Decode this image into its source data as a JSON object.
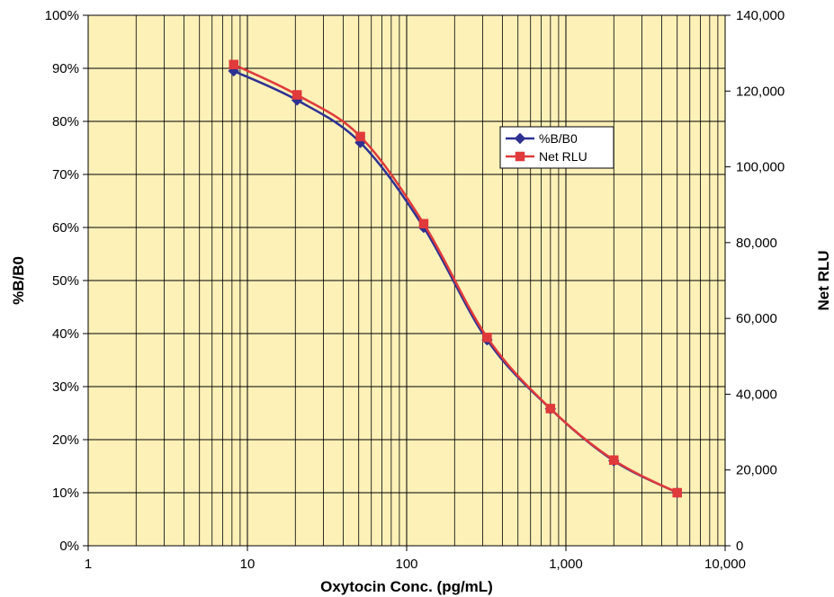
{
  "chart_data": {
    "type": "line",
    "xscale": "log",
    "xlabel": "Oxytocin Conc. (pg/mL)",
    "ylabel": "%B/B0",
    "y2label": "Net RLU",
    "xlim": [
      1,
      10000
    ],
    "ylim": [
      0,
      100
    ],
    "y2lim": [
      0,
      140000
    ],
    "x_tick_labels": [
      "1",
      "10",
      "100",
      "1,000",
      "10,000"
    ],
    "x_tick_values": [
      1,
      10,
      100,
      1000,
      10000
    ],
    "y_tick_labels": [
      "0%",
      "10%",
      "20%",
      "30%",
      "40%",
      "50%",
      "60%",
      "70%",
      "80%",
      "90%",
      "100%"
    ],
    "y_tick_values": [
      0,
      10,
      20,
      30,
      40,
      50,
      60,
      70,
      80,
      90,
      100
    ],
    "y2_tick_labels": [
      "0",
      "20,000",
      "40,000",
      "60,000",
      "80,000",
      "100,000",
      "120,000",
      "140,000"
    ],
    "y2_tick_values": [
      0,
      20000,
      40000,
      60000,
      80000,
      100000,
      120000,
      140000
    ],
    "grid": true,
    "legend": "upper-right-center",
    "x": [
      8.2,
      20.5,
      51.2,
      128,
      320,
      800,
      2000,
      5000
    ],
    "series": [
      {
        "name": "%B/B0",
        "axis": "left",
        "color": "#2e3192",
        "marker": "diamond",
        "values": [
          89.5,
          84.0,
          76.0,
          60.0,
          38.8,
          25.8,
          16.0,
          10.0
        ]
      },
      {
        "name": "Net RLU",
        "axis": "right",
        "color": "#e03a3a",
        "marker": "square",
        "values": [
          127000,
          119000,
          108000,
          85000,
          55000,
          36200,
          22600,
          14000
        ]
      }
    ],
    "colors": {
      "plot_background": "#fdf1b8",
      "grid": "#000000"
    }
  }
}
